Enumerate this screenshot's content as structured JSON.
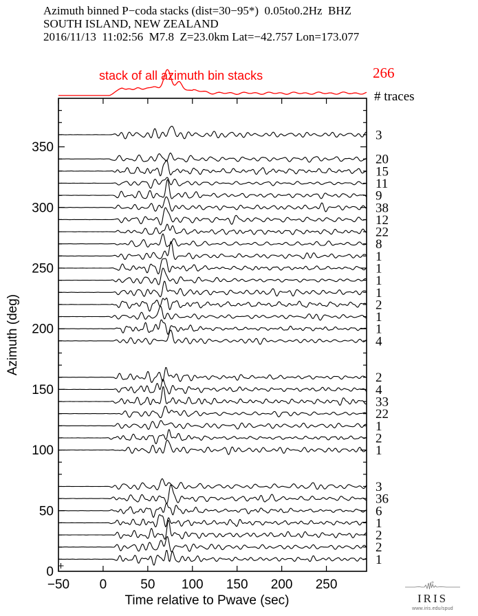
{
  "header": {
    "line1": "Azimuth binned P−coda stacks (dist=30−95*)  0.05to0.2Hz  BHZ",
    "line2": "SOUTH ISLAND, NEW ZEALAND",
    "line3": "2016/11/13  11:02:56  M7.8  Z=23.0km Lat=−42.757 Lon=173.077"
  },
  "stack": {
    "label": "stack of all azimuth bin stacks",
    "total": "266",
    "heading": "# traces",
    "color": "#ff0000"
  },
  "logo": {
    "name": "IRIS",
    "url": "www.iris.edu/spud"
  },
  "chart_data": {
    "type": "line",
    "title": "Azimuth binned P-coda stacks, SOUTH ISLAND, NEW ZEALAND",
    "xlabel": "Time relative to Pwave (sec)",
    "ylabel": "Azimuth (deg)",
    "xlim": [
      -50,
      295
    ],
    "ylim": [
      0,
      390
    ],
    "xticks": [
      -50,
      0,
      50,
      100,
      150,
      200,
      250
    ],
    "yticks": [
      0,
      50,
      100,
      150,
      200,
      250,
      300,
      350
    ],
    "y_minor_step": 10,
    "grid": false,
    "trace_color": "#000000",
    "stack_trace": {
      "label": "stack of all azimuth bin stacks",
      "total_traces": 266,
      "color": "#ff0000"
    },
    "bins": [
      {
        "azimuth": 360,
        "count": 3
      },
      {
        "azimuth": 340,
        "count": 20
      },
      {
        "azimuth": 330,
        "count": 15
      },
      {
        "azimuth": 320,
        "count": 11
      },
      {
        "azimuth": 310,
        "count": 9
      },
      {
        "azimuth": 300,
        "count": 38
      },
      {
        "azimuth": 290,
        "count": 12
      },
      {
        "azimuth": 280,
        "count": 22
      },
      {
        "azimuth": 270,
        "count": 8
      },
      {
        "azimuth": 260,
        "count": 1
      },
      {
        "azimuth": 250,
        "count": 1
      },
      {
        "azimuth": 240,
        "count": 1
      },
      {
        "azimuth": 230,
        "count": 1
      },
      {
        "azimuth": 220,
        "count": 2
      },
      {
        "azimuth": 210,
        "count": 1
      },
      {
        "azimuth": 200,
        "count": 1
      },
      {
        "azimuth": 190,
        "count": 4
      },
      {
        "azimuth": 160,
        "count": 2
      },
      {
        "azimuth": 150,
        "count": 4
      },
      {
        "azimuth": 140,
        "count": 33
      },
      {
        "azimuth": 130,
        "count": 22
      },
      {
        "azimuth": 120,
        "count": 1
      },
      {
        "azimuth": 110,
        "count": 2
      },
      {
        "azimuth": 100,
        "count": 1
      },
      {
        "azimuth": 70,
        "count": 3
      },
      {
        "azimuth": 60,
        "count": 36
      },
      {
        "azimuth": 50,
        "count": 6
      },
      {
        "azimuth": 40,
        "count": 1
      },
      {
        "azimuth": 30,
        "count": 2
      },
      {
        "azimuth": 20,
        "count": 2
      },
      {
        "azimuth": 10,
        "count": 1
      }
    ]
  }
}
